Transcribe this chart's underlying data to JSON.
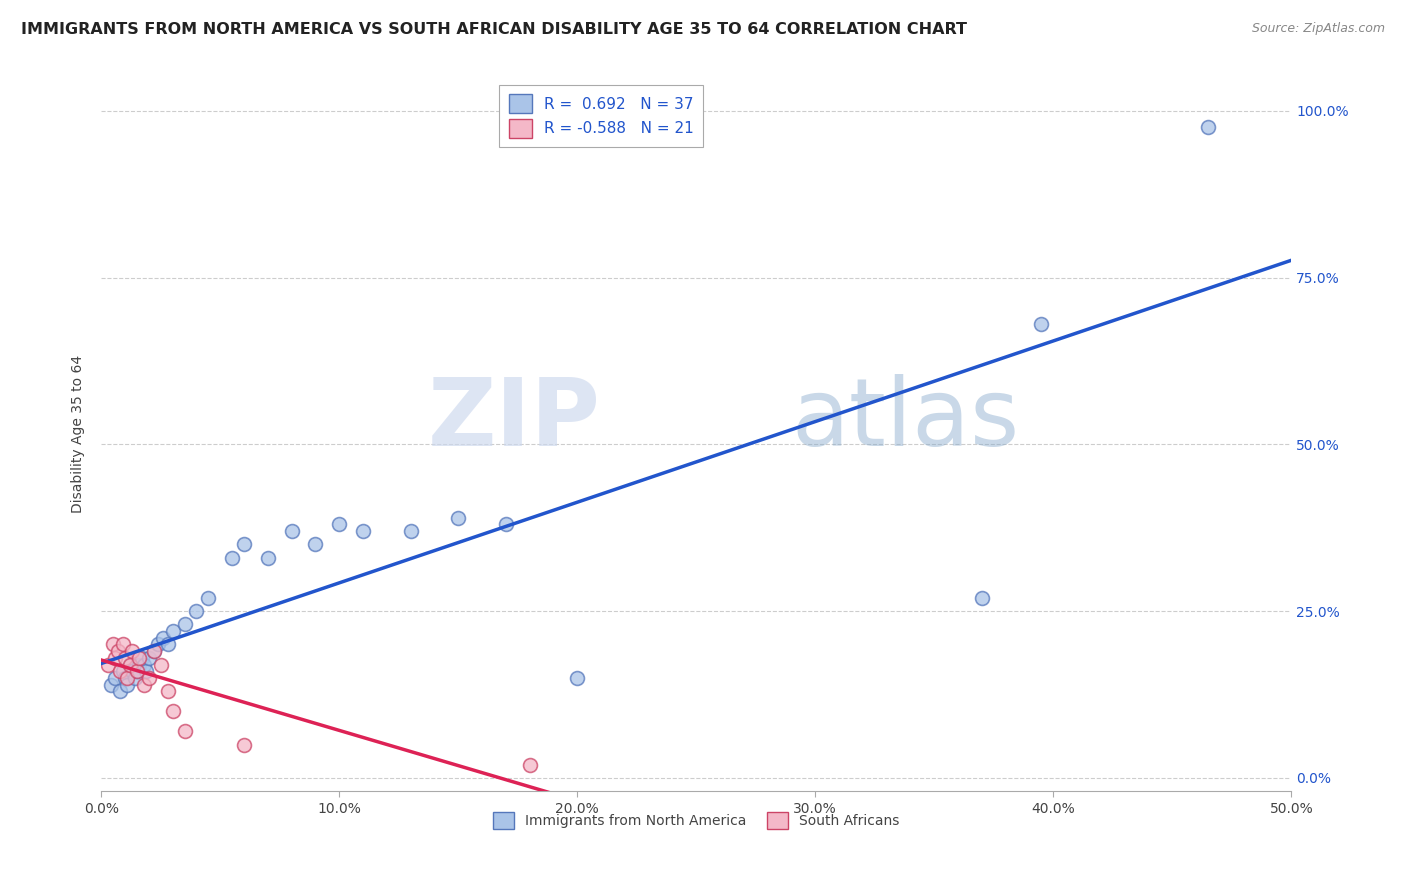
{
  "title": "IMMIGRANTS FROM NORTH AMERICA VS SOUTH AFRICAN DISABILITY AGE 35 TO 64 CORRELATION CHART",
  "source": "Source: ZipAtlas.com",
  "ylabel": "Disability Age 35 to 64",
  "xlim": [
    0.0,
    0.5
  ],
  "ylim": [
    -0.02,
    1.05
  ],
  "xticks": [
    0.0,
    0.1,
    0.2,
    0.3,
    0.4,
    0.5
  ],
  "yticks": [
    0.0,
    0.25,
    0.5,
    0.75,
    1.0
  ],
  "xticklabels": [
    "0.0%",
    "10.0%",
    "20.0%",
    "30.0%",
    "40.0%",
    "50.0%"
  ],
  "yticklabels_right": [
    "0.0%",
    "25.0%",
    "50.0%",
    "75.0%",
    "100.0%"
  ],
  "grid_color": "#c8c8c8",
  "background_color": "#ffffff",
  "blue_R": 0.692,
  "blue_N": 37,
  "pink_R": -0.588,
  "pink_N": 21,
  "blue_fill_color": "#aac4e8",
  "pink_fill_color": "#f4b8c8",
  "blue_edge_color": "#5577bb",
  "pink_edge_color": "#cc4466",
  "blue_line_color": "#2255cc",
  "pink_line_color": "#dd2255",
  "right_axis_color": "#2255cc",
  "blue_scatter_x": [
    0.004,
    0.006,
    0.008,
    0.009,
    0.01,
    0.011,
    0.012,
    0.013,
    0.014,
    0.015,
    0.016,
    0.017,
    0.018,
    0.019,
    0.02,
    0.022,
    0.024,
    0.026,
    0.028,
    0.03,
    0.035,
    0.04,
    0.045,
    0.055,
    0.06,
    0.07,
    0.08,
    0.09,
    0.1,
    0.11,
    0.13,
    0.15,
    0.17,
    0.2,
    0.37,
    0.395,
    0.465
  ],
  "blue_scatter_y": [
    0.14,
    0.15,
    0.13,
    0.16,
    0.15,
    0.14,
    0.17,
    0.16,
    0.15,
    0.16,
    0.17,
    0.18,
    0.17,
    0.16,
    0.18,
    0.19,
    0.2,
    0.21,
    0.2,
    0.22,
    0.23,
    0.25,
    0.27,
    0.33,
    0.35,
    0.33,
    0.37,
    0.35,
    0.38,
    0.37,
    0.37,
    0.39,
    0.38,
    0.15,
    0.27,
    0.68,
    0.975
  ],
  "pink_scatter_x": [
    0.003,
    0.005,
    0.006,
    0.007,
    0.008,
    0.009,
    0.01,
    0.011,
    0.012,
    0.013,
    0.015,
    0.016,
    0.018,
    0.02,
    0.022,
    0.025,
    0.028,
    0.03,
    0.035,
    0.06,
    0.18
  ],
  "pink_scatter_y": [
    0.17,
    0.2,
    0.18,
    0.19,
    0.16,
    0.2,
    0.18,
    0.15,
    0.17,
    0.19,
    0.16,
    0.18,
    0.14,
    0.15,
    0.19,
    0.17,
    0.13,
    0.1,
    0.07,
    0.05,
    0.02
  ],
  "watermark_zip": "ZIP",
  "watermark_atlas": "atlas",
  "marker_size": 100,
  "title_fontsize": 11.5,
  "axis_label_fontsize": 10,
  "tick_fontsize": 10,
  "legend_fontsize": 11
}
